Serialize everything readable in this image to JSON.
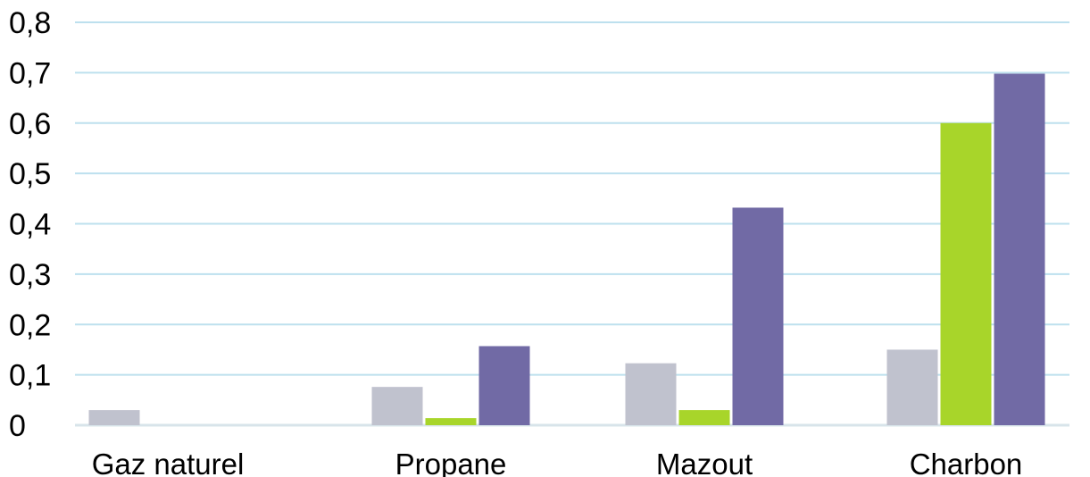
{
  "chart_data": {
    "type": "bar",
    "categories": [
      "Gaz naturel",
      "Propane",
      "Mazout",
      "Charbon"
    ],
    "series": [
      {
        "values": [
          0.03,
          0.076,
          0.123,
          0.15
        ],
        "color": "#c0c2ce"
      },
      {
        "values": [
          0.0,
          0.014,
          0.03,
          0.6
        ],
        "color": "#a8d52a"
      },
      {
        "values": [
          0.0,
          0.157,
          0.432,
          0.698
        ],
        "color": "#716aa5"
      }
    ],
    "ylim": [
      0,
      0.8
    ],
    "yticks": [
      "0",
      "0,1",
      "0,2",
      "0,3",
      "0,4",
      "0,5",
      "0,6",
      "0,7",
      "0,8"
    ],
    "grid": true,
    "grid_color": "#bde0ee",
    "baseline_color": "#d8e4ea",
    "title": "",
    "xlabel": "",
    "ylabel": ""
  }
}
